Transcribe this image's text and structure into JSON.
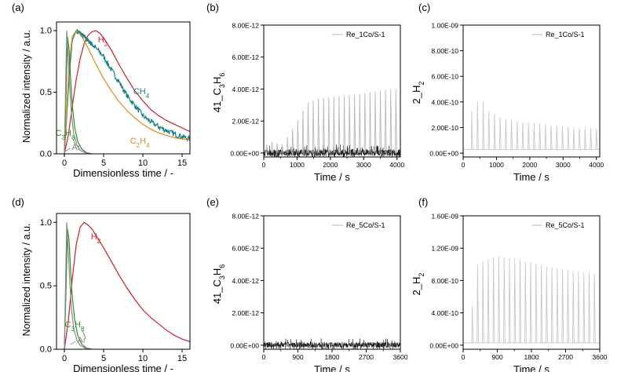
{
  "chart_data": [
    {
      "panel": "(a)",
      "type": "line",
      "xlabel": "Dimensionless time / -",
      "ylabel": "Normalized intensity / a.u.",
      "xlim": [
        -1,
        16
      ],
      "ylim": [
        0,
        1.07
      ],
      "xticks": [
        0,
        5,
        10,
        15
      ],
      "yticks": [
        0.0,
        0.5,
        1.0
      ],
      "ytick_labels": [
        "0.0",
        "0.5",
        "1.0"
      ],
      "series": [
        {
          "name": "H2",
          "color": "#d01e2a",
          "label_sub": [
            "H",
            "2"
          ],
          "x": [
            0,
            0.5,
            1,
            1.5,
            2,
            2.5,
            3,
            3.5,
            4,
            4.5,
            5,
            6,
            7,
            8,
            9,
            10,
            11,
            12,
            13,
            14,
            15,
            16
          ],
          "y": [
            0,
            0.15,
            0.38,
            0.6,
            0.77,
            0.89,
            0.96,
            0.99,
            1.0,
            0.98,
            0.94,
            0.84,
            0.72,
            0.61,
            0.51,
            0.43,
            0.36,
            0.31,
            0.27,
            0.24,
            0.21,
            0.18
          ]
        },
        {
          "name": "CH4",
          "color": "#1a7f7f",
          "label_sub": [
            "CH",
            "4"
          ],
          "noise": 0.022,
          "x": [
            0,
            0.3,
            0.6,
            1,
            1.5,
            2,
            2.5,
            3,
            3.5,
            4,
            5,
            6,
            7,
            8,
            9,
            10,
            11,
            12,
            13,
            14,
            15,
            16
          ],
          "y": [
            0,
            0.3,
            0.62,
            0.92,
            1.0,
            0.98,
            0.95,
            0.92,
            0.89,
            0.86,
            0.79,
            0.68,
            0.58,
            0.47,
            0.39,
            0.31,
            0.26,
            0.22,
            0.19,
            0.16,
            0.14,
            0.12
          ]
        },
        {
          "name": "C2H4",
          "color": "#e08a18",
          "label_sub": [
            "C",
            "2",
            "H",
            "4"
          ],
          "x": [
            0,
            0.3,
            0.6,
            1,
            1.5,
            2,
            2.5,
            3,
            4,
            5,
            6,
            7,
            8,
            9,
            10,
            11,
            12,
            13,
            14,
            15,
            16
          ],
          "y": [
            0,
            0.35,
            0.72,
            0.95,
            1.0,
            0.97,
            0.92,
            0.86,
            0.73,
            0.61,
            0.51,
            0.42,
            0.35,
            0.29,
            0.24,
            0.2,
            0.17,
            0.15,
            0.13,
            0.12,
            0.11
          ]
        },
        {
          "name": "C3H8",
          "color": "#2f8f2f",
          "label_sub": [
            "C",
            "3",
            "H",
            "8"
          ],
          "x": [
            0,
            0.2,
            0.4,
            0.6,
            0.8,
            1,
            1.3,
            1.7,
            2.2,
            2.8,
            3.5
          ],
          "y": [
            0,
            0.45,
            0.95,
            0.85,
            0.6,
            0.4,
            0.22,
            0.1,
            0.04,
            0.01,
            0
          ]
        },
        {
          "name": "Ar",
          "color": "#8a8a8a",
          "label_sub": [
            "Ar"
          ],
          "x": [
            0,
            0.15,
            0.3,
            0.5,
            0.7,
            0.9,
            1.2,
            1.6,
            2,
            2.6,
            3.2
          ],
          "y": [
            0,
            0.5,
            1.0,
            0.78,
            0.52,
            0.32,
            0.16,
            0.07,
            0.03,
            0.01,
            0
          ]
        }
      ]
    },
    {
      "panel": "(b)",
      "type": "line",
      "xlabel": "Time / s",
      "ylabel_sub": [
        "41_C",
        "3",
        "H",
        "6"
      ],
      "xlim": [
        0,
        4100
      ],
      "ylim": [
        -2.5e-13,
        8e-12
      ],
      "xticks": [
        0,
        1000,
        2000,
        3000,
        4000
      ],
      "minor_xticks": [
        500,
        1500,
        2500,
        3500
      ],
      "yticks": [
        0,
        2e-12,
        4e-12,
        6e-12,
        8e-12
      ],
      "ytick_labels": [
        "0.00E+00",
        "2.00E-12",
        "4.00E-12",
        "6.00E-12",
        "8.00E-12"
      ],
      "legend": "Re_1Co/S-1",
      "legend_color": "#bbbbbb",
      "noise_amp": 7e-13,
      "series": [
        {
          "name": "Re_1Co/S-1",
          "color": "#b8b8b8",
          "x": [
            90,
            245,
            400,
            555,
            710,
            865,
            1020,
            1175,
            1330,
            1485,
            1640,
            1795,
            1950,
            2105,
            2260,
            2415,
            2570,
            2725,
            2880,
            3035,
            3190,
            3345,
            3500,
            3655,
            3810,
            3965
          ],
          "y": [
            5.5e-13,
            7e-13,
            6e-13,
            5.5e-13,
            1e-12,
            1.5e-12,
            2.05e-12,
            2.65e-12,
            3.15e-12,
            3.3e-12,
            3.4e-12,
            3.45e-12,
            3.5e-12,
            3.55e-12,
            3.55e-12,
            3.55e-12,
            3.6e-12,
            3.65e-12,
            3.7e-12,
            3.75e-12,
            3.8e-12,
            3.85e-12,
            3.9e-12,
            3.95e-12,
            4e-12,
            4e-12
          ]
        }
      ]
    },
    {
      "panel": "(c)",
      "type": "line",
      "xlabel": "Time / s",
      "ylabel_sub": [
        "2_H",
        "2"
      ],
      "xlim": [
        0,
        4100
      ],
      "ylim": [
        -3e-11,
        1e-09
      ],
      "xticks": [
        0,
        1000,
        2000,
        3000,
        4000
      ],
      "minor_xticks": [
        500,
        1500,
        2500,
        3500
      ],
      "yticks": [
        0,
        2e-10,
        4e-10,
        6e-10,
        8e-10,
        1e-09
      ],
      "ytick_labels": [
        "0.00E+00",
        "2.00E-10",
        "4.00E-10",
        "6.00E-10",
        "8.00E-10",
        "1.00E-09"
      ],
      "legend": "Re_1Co/S-1",
      "legend_color": "#bbbbbb",
      "baseline": 2.8e-11,
      "series": [
        {
          "name": "Re_1Co/S-1",
          "color": "#c8c8c8",
          "x": [
            260,
            430,
            600,
            770,
            940,
            1110,
            1280,
            1450,
            1620,
            1790,
            1960,
            2130,
            2300,
            2470,
            2640,
            2810,
            2980,
            3150,
            3320,
            3490,
            3660,
            3830,
            4000
          ],
          "y": [
            3.3e-10,
            4e-10,
            4.05e-10,
            3.3e-10,
            3.05e-10,
            2.8e-10,
            2.65e-10,
            2.6e-10,
            2.5e-10,
            2.45e-10,
            2.4e-10,
            2.35e-10,
            2.3e-10,
            2.25e-10,
            2.2e-10,
            2.15e-10,
            2.1e-10,
            2.05e-10,
            2e-10,
            2e-10,
            1.95e-10,
            1.95e-10,
            1.9e-10
          ]
        }
      ]
    },
    {
      "panel": "(d)",
      "type": "line",
      "xlabel": "Dimensionless time / -",
      "ylabel": "Normalized intensity / a.u.",
      "xlim": [
        -1,
        16
      ],
      "ylim": [
        0,
        1.07
      ],
      "xticks": [
        0,
        5,
        10,
        15
      ],
      "yticks": [
        0.0,
        0.5,
        1.0
      ],
      "ytick_labels": [
        "0.0",
        "0.5",
        "1.0"
      ],
      "series": [
        {
          "name": "H2",
          "color": "#d01e2a",
          "label_sub": [
            "H",
            "2"
          ],
          "x": [
            0,
            0.5,
            1,
            1.5,
            2,
            2.5,
            3,
            3.5,
            4,
            5,
            6,
            7,
            8,
            9,
            10,
            11,
            12,
            13,
            14,
            15,
            16
          ],
          "y": [
            0,
            0.22,
            0.55,
            0.82,
            0.96,
            1.0,
            0.98,
            0.95,
            0.9,
            0.8,
            0.69,
            0.58,
            0.48,
            0.39,
            0.31,
            0.25,
            0.2,
            0.15,
            0.11,
            0.08,
            0.06
          ]
        },
        {
          "name": "C3H8",
          "color": "#2f8f2f",
          "label_sub": [
            "C",
            "3",
            "H",
            "8"
          ],
          "x": [
            0,
            0.2,
            0.4,
            0.6,
            0.8,
            1,
            1.3,
            1.7,
            2.2,
            2.8,
            3.5
          ],
          "y": [
            0,
            0.45,
            0.95,
            0.86,
            0.62,
            0.42,
            0.24,
            0.11,
            0.04,
            0.01,
            0
          ]
        },
        {
          "name": "Ar",
          "color": "#8a8a8a",
          "label_sub": [
            "Ar"
          ],
          "x": [
            0,
            0.15,
            0.3,
            0.5,
            0.7,
            0.9,
            1.2,
            1.6,
            2,
            2.6,
            3.2
          ],
          "y": [
            0,
            0.5,
            1.0,
            0.78,
            0.52,
            0.32,
            0.16,
            0.07,
            0.03,
            0.01,
            0
          ]
        }
      ]
    },
    {
      "panel": "(e)",
      "type": "line",
      "xlabel": "Time / s",
      "ylabel_sub": [
        "41_C",
        "3",
        "H",
        "6"
      ],
      "xlim": [
        0,
        3600
      ],
      "ylim": [
        -2.5e-13,
        8e-12
      ],
      "xticks": [
        0,
        900,
        1800,
        2700,
        3600
      ],
      "minor_xticks": [
        450,
        1350,
        2250,
        3150
      ],
      "yticks": [
        0,
        2e-12,
        4e-12,
        6e-12,
        8e-12
      ],
      "ytick_labels": [
        "0.00E+00",
        "2.00E-12",
        "4.00E-12",
        "6.00E-12",
        "8.00E-12"
      ],
      "legend": "Re_5Co/S-1",
      "legend_color": "#bbbbbb",
      "noise_amp": 5.5e-13,
      "series": [
        {
          "name": "Re_5Co/S-1",
          "color": "#c0c0c0",
          "x": [],
          "y": []
        }
      ]
    },
    {
      "panel": "(f)",
      "type": "line",
      "xlabel": "Time / s",
      "ylabel_sub": [
        "2_H",
        "2"
      ],
      "xlim": [
        0,
        3600
      ],
      "ylim": [
        -5e-11,
        1.6e-09
      ],
      "xticks": [
        0,
        900,
        1800,
        2700,
        3600
      ],
      "minor_xticks": [
        450,
        1350,
        2250,
        3150
      ],
      "yticks": [
        0,
        4e-10,
        8e-10,
        1.2e-09,
        1.6e-09
      ],
      "ytick_labels": [
        "0.00E+00",
        "4.00E-10",
        "8.00E-10",
        "1.20E-09",
        "1.60E-09"
      ],
      "legend": "Re_5Co/S-1",
      "legend_color": "#bbbbbb",
      "baseline": 3e-11,
      "series": [
        {
          "name": "Re_5Co/S-1",
          "color": "#c8c8c8",
          "x": [
            240,
            380,
            520,
            660,
            800,
            940,
            1080,
            1220,
            1360,
            1500,
            1640,
            1780,
            1920,
            2060,
            2200,
            2340,
            2480,
            2620,
            2760,
            2900,
            3040,
            3180,
            3320,
            3460
          ],
          "y": [
            4.8e-10,
            1e-09,
            1.04e-09,
            1.06e-09,
            1.09e-09,
            1.1e-09,
            1.09e-09,
            1.08e-09,
            1.07e-09,
            1.05e-09,
            1.03e-09,
            1.02e-09,
            1e-09,
            9.9e-10,
            9.7e-10,
            9.6e-10,
            9.5e-10,
            9.4e-10,
            9.3e-10,
            9.2e-10,
            9.1e-10,
            9e-10,
            9e-10,
            8.9e-10
          ]
        }
      ]
    }
  ]
}
